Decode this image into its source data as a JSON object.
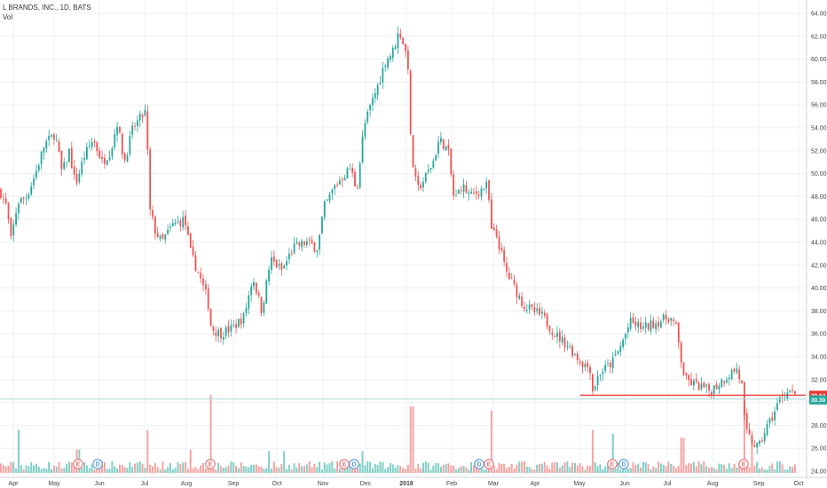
{
  "header": {
    "symbol_line": "L BRANDS, INC., 1D, BATS",
    "volume_label": "Vol"
  },
  "colors": {
    "up": "#26a69a",
    "down": "#ef5350",
    "vol_up": "#7fcfc6",
    "vol_down": "#f5a3a1",
    "grid": "#eef0f3",
    "resistance": "#e53935",
    "last_line": "#a9d6d3",
    "axis_text": "#444444"
  },
  "price_labels": {
    "resistance": "30.64",
    "last": "30.30"
  },
  "chart_data": {
    "type": "candlestick",
    "title": "L BRANDS, INC., 1D, BATS",
    "ylim": [
      24,
      65
    ],
    "y_ticks": [
      "24.00",
      "26.00",
      "28.00",
      "30.00",
      "32.00",
      "34.00",
      "36.00",
      "38.00",
      "40.00",
      "42.00",
      "44.00",
      "46.00",
      "48.00",
      "50.00",
      "52.00",
      "54.00",
      "56.00",
      "58.00",
      "60.00",
      "62.00",
      "64.00"
    ],
    "x_ticks": [
      "Apr",
      "May",
      "Jun",
      "Jul",
      "Aug",
      "Sep",
      "Oct",
      "Nov",
      "Dec",
      "2018",
      "Feb",
      "Mar",
      "Apr",
      "May",
      "Jun",
      "Jul",
      "Aug",
      "Sep",
      "Oct"
    ],
    "price_anchors": [
      [
        0,
        48.5
      ],
      [
        8,
        47.0
      ],
      [
        12,
        44.0
      ],
      [
        20,
        47.5
      ],
      [
        30,
        48.0
      ],
      [
        40,
        50.0
      ],
      [
        50,
        52.5
      ],
      [
        62,
        53.5
      ],
      [
        70,
        50.0
      ],
      [
        78,
        52.0
      ],
      [
        85,
        49.0
      ],
      [
        95,
        51.5
      ],
      [
        105,
        53.0
      ],
      [
        115,
        51.0
      ],
      [
        125,
        52.0
      ],
      [
        132,
        54.5
      ],
      [
        140,
        51.0
      ],
      [
        150,
        54.0
      ],
      [
        160,
        55.0
      ],
      [
        165,
        55.5
      ],
      [
        168,
        47.0
      ],
      [
        175,
        45.0
      ],
      [
        182,
        44.0
      ],
      [
        195,
        45.5
      ],
      [
        208,
        46.0
      ],
      [
        215,
        43.0
      ],
      [
        225,
        41.0
      ],
      [
        234,
        39.0
      ],
      [
        238,
        36.5
      ],
      [
        248,
        36.0
      ],
      [
        262,
        36.5
      ],
      [
        275,
        37.5
      ],
      [
        285,
        41.0
      ],
      [
        295,
        38.0
      ],
      [
        305,
        42.5
      ],
      [
        318,
        41.5
      ],
      [
        330,
        43.5
      ],
      [
        345,
        44.0
      ],
      [
        358,
        43.5
      ],
      [
        365,
        47.0
      ],
      [
        378,
        49.0
      ],
      [
        395,
        50.5
      ],
      [
        402,
        48.5
      ],
      [
        410,
        54.0
      ],
      [
        418,
        56.0
      ],
      [
        425,
        57.5
      ],
      [
        435,
        60.0
      ],
      [
        442,
        60.5
      ],
      [
        450,
        62.5
      ],
      [
        456,
        61.0
      ],
      [
        461,
        59.0
      ],
      [
        463,
        52.0
      ],
      [
        470,
        48.5
      ],
      [
        478,
        49.5
      ],
      [
        488,
        51.0
      ],
      [
        495,
        53.0
      ],
      [
        505,
        52.0
      ],
      [
        512,
        47.5
      ],
      [
        520,
        49.0
      ],
      [
        530,
        48.0
      ],
      [
        540,
        48.5
      ],
      [
        550,
        49.0
      ],
      [
        553,
        45.0
      ],
      [
        560,
        44.5
      ],
      [
        570,
        41.5
      ],
      [
        580,
        40.0
      ],
      [
        590,
        38.5
      ],
      [
        600,
        38.0
      ],
      [
        612,
        37.5
      ],
      [
        625,
        36.0
      ],
      [
        640,
        35.0
      ],
      [
        655,
        33.5
      ],
      [
        665,
        33.0
      ],
      [
        668,
        31.0
      ],
      [
        675,
        32.5
      ],
      [
        690,
        33.5
      ],
      [
        700,
        35.0
      ],
      [
        710,
        37.0
      ],
      [
        725,
        36.5
      ],
      [
        740,
        37.0
      ],
      [
        755,
        37.5
      ],
      [
        762,
        36.5
      ],
      [
        768,
        33.5
      ],
      [
        772,
        32.0
      ],
      [
        785,
        31.5
      ],
      [
        800,
        31.0
      ],
      [
        815,
        32.0
      ],
      [
        830,
        33.0
      ],
      [
        836,
        31.5
      ],
      [
        840,
        27.5
      ],
      [
        848,
        26.5
      ],
      [
        855,
        26.0
      ],
      [
        862,
        27.5
      ],
      [
        872,
        29.0
      ],
      [
        880,
        30.5
      ],
      [
        890,
        31.0
      ],
      [
        898,
        30.3
      ]
    ],
    "volume_spikes": [
      [
        22,
        0.55
      ],
      [
        88,
        0.3
      ],
      [
        167,
        0.55
      ],
      [
        215,
        0.3
      ],
      [
        237,
        1.0
      ],
      [
        303,
        0.28
      ],
      [
        320,
        0.28
      ],
      [
        408,
        0.28
      ],
      [
        464,
        0.85
      ],
      [
        553,
        0.8
      ],
      [
        667,
        0.55
      ],
      [
        690,
        0.5
      ],
      [
        769,
        0.45
      ],
      [
        838,
        0.9
      ],
      [
        848,
        0.45
      ]
    ],
    "earnings_markers": [
      {
        "x": 88,
        "type": "E"
      },
      {
        "x": 110,
        "type": "D"
      },
      {
        "x": 237,
        "type": "E"
      },
      {
        "x": 388,
        "type": "E"
      },
      {
        "x": 399,
        "type": "D"
      },
      {
        "x": 540,
        "type": "D"
      },
      {
        "x": 551,
        "type": "E"
      },
      {
        "x": 690,
        "type": "E"
      },
      {
        "x": 703,
        "type": "D"
      },
      {
        "x": 838,
        "type": "E"
      }
    ],
    "resistance_level": 30.64,
    "last_price": 30.3
  }
}
